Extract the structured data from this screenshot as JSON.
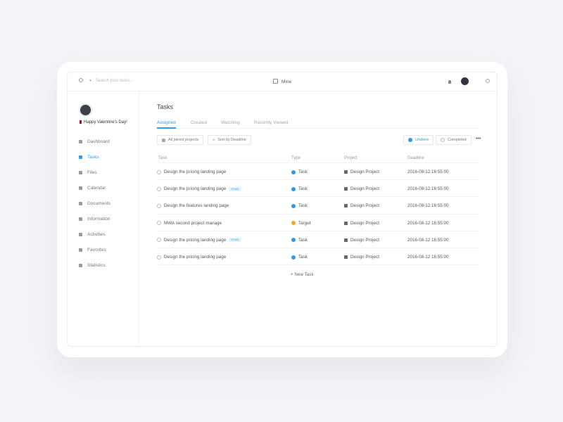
{
  "header": {
    "search_placeholder": "Search your tasks...",
    "filter_label": "Mine"
  },
  "user": {
    "greeting": "Happy Valentine's Day!"
  },
  "sidebar": {
    "items": [
      {
        "label": "Dashboard"
      },
      {
        "label": "Tasks",
        "active": true
      },
      {
        "label": "Files"
      },
      {
        "label": "Calendar"
      },
      {
        "label": "Documents"
      },
      {
        "label": "Information"
      },
      {
        "label": "Activities"
      },
      {
        "label": "Favorites"
      },
      {
        "label": "Statistics"
      }
    ]
  },
  "main": {
    "title": "Tasks",
    "tabs": [
      {
        "label": "Assigned",
        "active": true
      },
      {
        "label": "Created"
      },
      {
        "label": "Watching"
      },
      {
        "label": "Recently Viewed"
      }
    ],
    "filters": {
      "projects": "All joined projects",
      "sort": "Sort by Deadline",
      "undone": "Undone",
      "completed": "Completed"
    },
    "columns": [
      "Task",
      "Type",
      "Project",
      "Deadline"
    ],
    "rows": [
      {
        "task": "Design the pricing landing page",
        "badge": "",
        "type": "Task",
        "project": "Design Project",
        "deadline": "2016-08-12 16:55:00"
      },
      {
        "task": "Design the pricing landing page",
        "badge": "ST-600",
        "type": "Task",
        "project": "Design Project",
        "deadline": "2016-08-12 16:55:00"
      },
      {
        "task": "Design the features landing page",
        "badge": "",
        "type": "Task",
        "project": "Design Project",
        "deadline": "2016-08-12 16:55:00"
      },
      {
        "task": "MWA second project manage",
        "badge": "",
        "type": "Target",
        "project": "Design Project",
        "deadline": "2016-08-12 16:55:00"
      },
      {
        "task": "Design the pricing landing page",
        "badge": "ST-600",
        "type": "Task",
        "project": "Design Project",
        "deadline": "2016-08-12 16:55:00"
      },
      {
        "task": "Design the pricing landing page",
        "badge": "",
        "type": "Task",
        "project": "Design Project",
        "deadline": "2016-08-12 16:55:00"
      }
    ],
    "new_task": "+ New Task"
  },
  "colors": {
    "accent": "#2d9cf0",
    "target": "#f5a623"
  }
}
